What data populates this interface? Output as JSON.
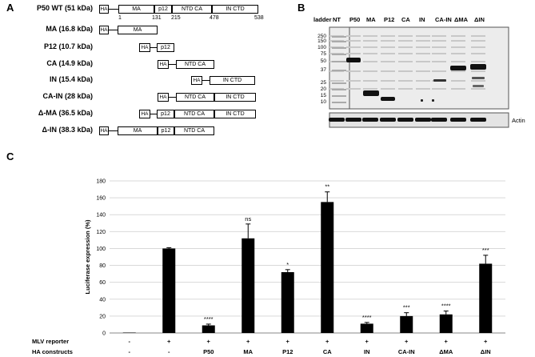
{
  "panel_a": {
    "letter": "A",
    "constructs": [
      {
        "label": "P50 WT (51 kDa)",
        "domains": [
          "HA",
          "MA",
          "p12",
          "NTD CA",
          "IN CTD"
        ]
      },
      {
        "label": "MA (16.8 kDa)",
        "domains": [
          "HA",
          "MA"
        ]
      },
      {
        "label": "P12 (10.7 kDa)",
        "domains": [
          "HA",
          "p12"
        ]
      },
      {
        "label": "CA (14.9 kDa)",
        "domains": [
          "HA",
          "NTD CA"
        ]
      },
      {
        "label": "IN (15.4 kDa)",
        "domains": [
          "HA",
          "IN CTD"
        ]
      },
      {
        "label": "CA-IN (28 kDa)",
        "domains": [
          "HA",
          "NTD CA",
          "IN CTD"
        ]
      },
      {
        "label": "Δ-MA (36.5 kDa)",
        "domains": [
          "HA",
          "p12",
          "NTD CA",
          "IN CTD"
        ]
      },
      {
        "label": "Δ-IN (38.3 kDa)",
        "domains": [
          "HA",
          "MA",
          "p12",
          "NTD CA"
        ]
      }
    ],
    "residue_numbers": [
      "1",
      "131",
      "215",
      "478",
      "538"
    ]
  },
  "panel_b": {
    "letter": "B",
    "lanes": [
      "ladder",
      "NT",
      "P50",
      "MA",
      "P12",
      "CA",
      "IN",
      "CA-IN",
      "ΔMA",
      "ΔIN"
    ],
    "mw_markers": [
      "250",
      "150",
      "100",
      "75",
      "50",
      "37",
      "25",
      "20",
      "15",
      "10"
    ],
    "loading_control": "Actin"
  },
  "panel_c": {
    "letter": "C",
    "row_labels": [
      "MLV reporter",
      "HA constructs"
    ],
    "reporter_signs": [
      "-",
      "+",
      "+",
      "+",
      "+",
      "+",
      "+",
      "+",
      "+",
      "+"
    ],
    "construct_labels": [
      "-",
      "-",
      "P50",
      "MA",
      "P12",
      "CA",
      "IN",
      "CA-IN",
      "ΔMA",
      "ΔIN"
    ]
  },
  "chart_data": {
    "type": "bar",
    "ylabel": "Luciferase expression (%)",
    "xlabel": "",
    "ylim": [
      0,
      180
    ],
    "yticks": [
      "0",
      "20",
      "40",
      "60",
      "80",
      "100",
      "120",
      "140",
      "160",
      "180"
    ],
    "grid": true,
    "categories": [
      "-/-",
      "+/-",
      "+/P50",
      "+/MA",
      "+/P12",
      "+/CA",
      "+/IN",
      "+/CA-IN",
      "+/ΔMA",
      "+/ΔIN"
    ],
    "values": [
      0.5,
      100,
      9,
      112,
      72,
      155,
      11,
      20,
      22,
      82
    ],
    "errors": [
      0,
      1,
      1.5,
      17,
      3,
      12,
      1.5,
      4,
      4,
      10
    ],
    "significance": [
      "",
      "",
      "****",
      "ns",
      "*",
      "**",
      "****",
      "***",
      "****",
      "***"
    ]
  }
}
